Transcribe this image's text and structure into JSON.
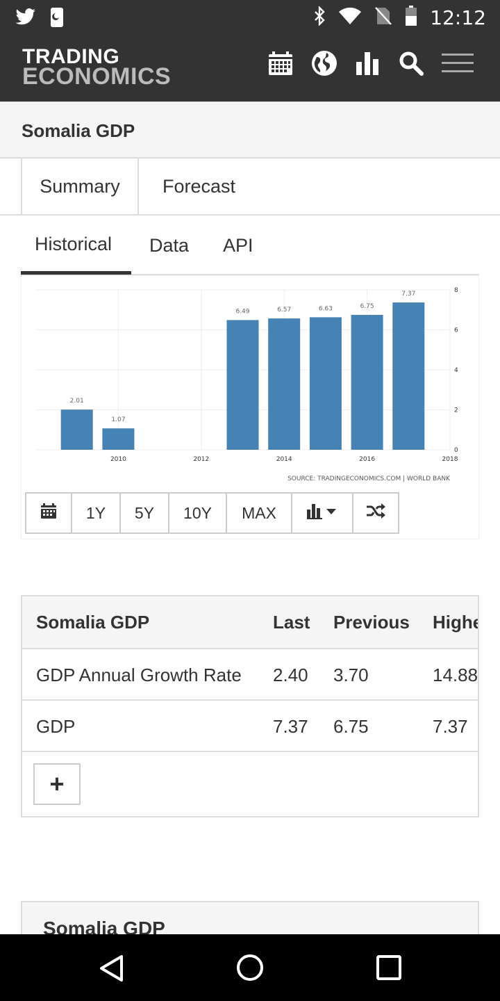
{
  "status_bar": {
    "time": "12:12",
    "icons": [
      "twitter-icon",
      "phone-notification-icon",
      "bluetooth-icon",
      "wifi-icon",
      "no-sim-icon",
      "battery-icon"
    ]
  },
  "header": {
    "logo_line1": "TRADING",
    "logo_line2": "ECONOMICS",
    "icons": [
      "calendar-icon",
      "globe-icon",
      "bar-chart-icon",
      "search-icon",
      "menu-icon"
    ]
  },
  "page_title": "Somalia GDP",
  "main_tabs": [
    {
      "label": "Summary"
    },
    {
      "label": "Forecast"
    }
  ],
  "sub_tabs": [
    {
      "label": "Historical",
      "active": true
    },
    {
      "label": "Data"
    },
    {
      "label": "API"
    }
  ],
  "chart_data": {
    "type": "bar",
    "x": [
      2009,
      2010,
      2013,
      2014,
      2015,
      2016,
      2017
    ],
    "values": [
      2.01,
      1.07,
      6.49,
      6.57,
      6.63,
      6.75,
      7.37
    ],
    "labels": [
      "2.01",
      "1.07",
      "6.49",
      "6.57",
      "6.63",
      "6.75",
      "7.37"
    ],
    "x_ticks": [
      "2010",
      "2012",
      "2014",
      "2016",
      "2018"
    ],
    "y_ticks": [
      "0",
      "2",
      "4",
      "6",
      "8"
    ],
    "ylim": [
      0,
      8
    ],
    "xlim": [
      2008,
      2018
    ],
    "color": "#4682b4",
    "source": "SOURCE: TRADINGECONOMICS.COM | WORLD BANK",
    "grid": true
  },
  "toolbar": {
    "buttons": [
      "1Y",
      "5Y",
      "10Y",
      "MAX"
    ]
  },
  "table": {
    "headers": [
      "Somalia GDP",
      "Last",
      "Previous",
      "Highest"
    ],
    "rows": [
      {
        "name": "GDP Annual Growth Rate",
        "last": "2.40",
        "previous": "3.70",
        "highest": "14.88"
      },
      {
        "name": "GDP",
        "last": "7.37",
        "previous": "6.75",
        "highest": "7.37"
      }
    ],
    "add_label": "+"
  },
  "section3_title": "Somalia GDP"
}
